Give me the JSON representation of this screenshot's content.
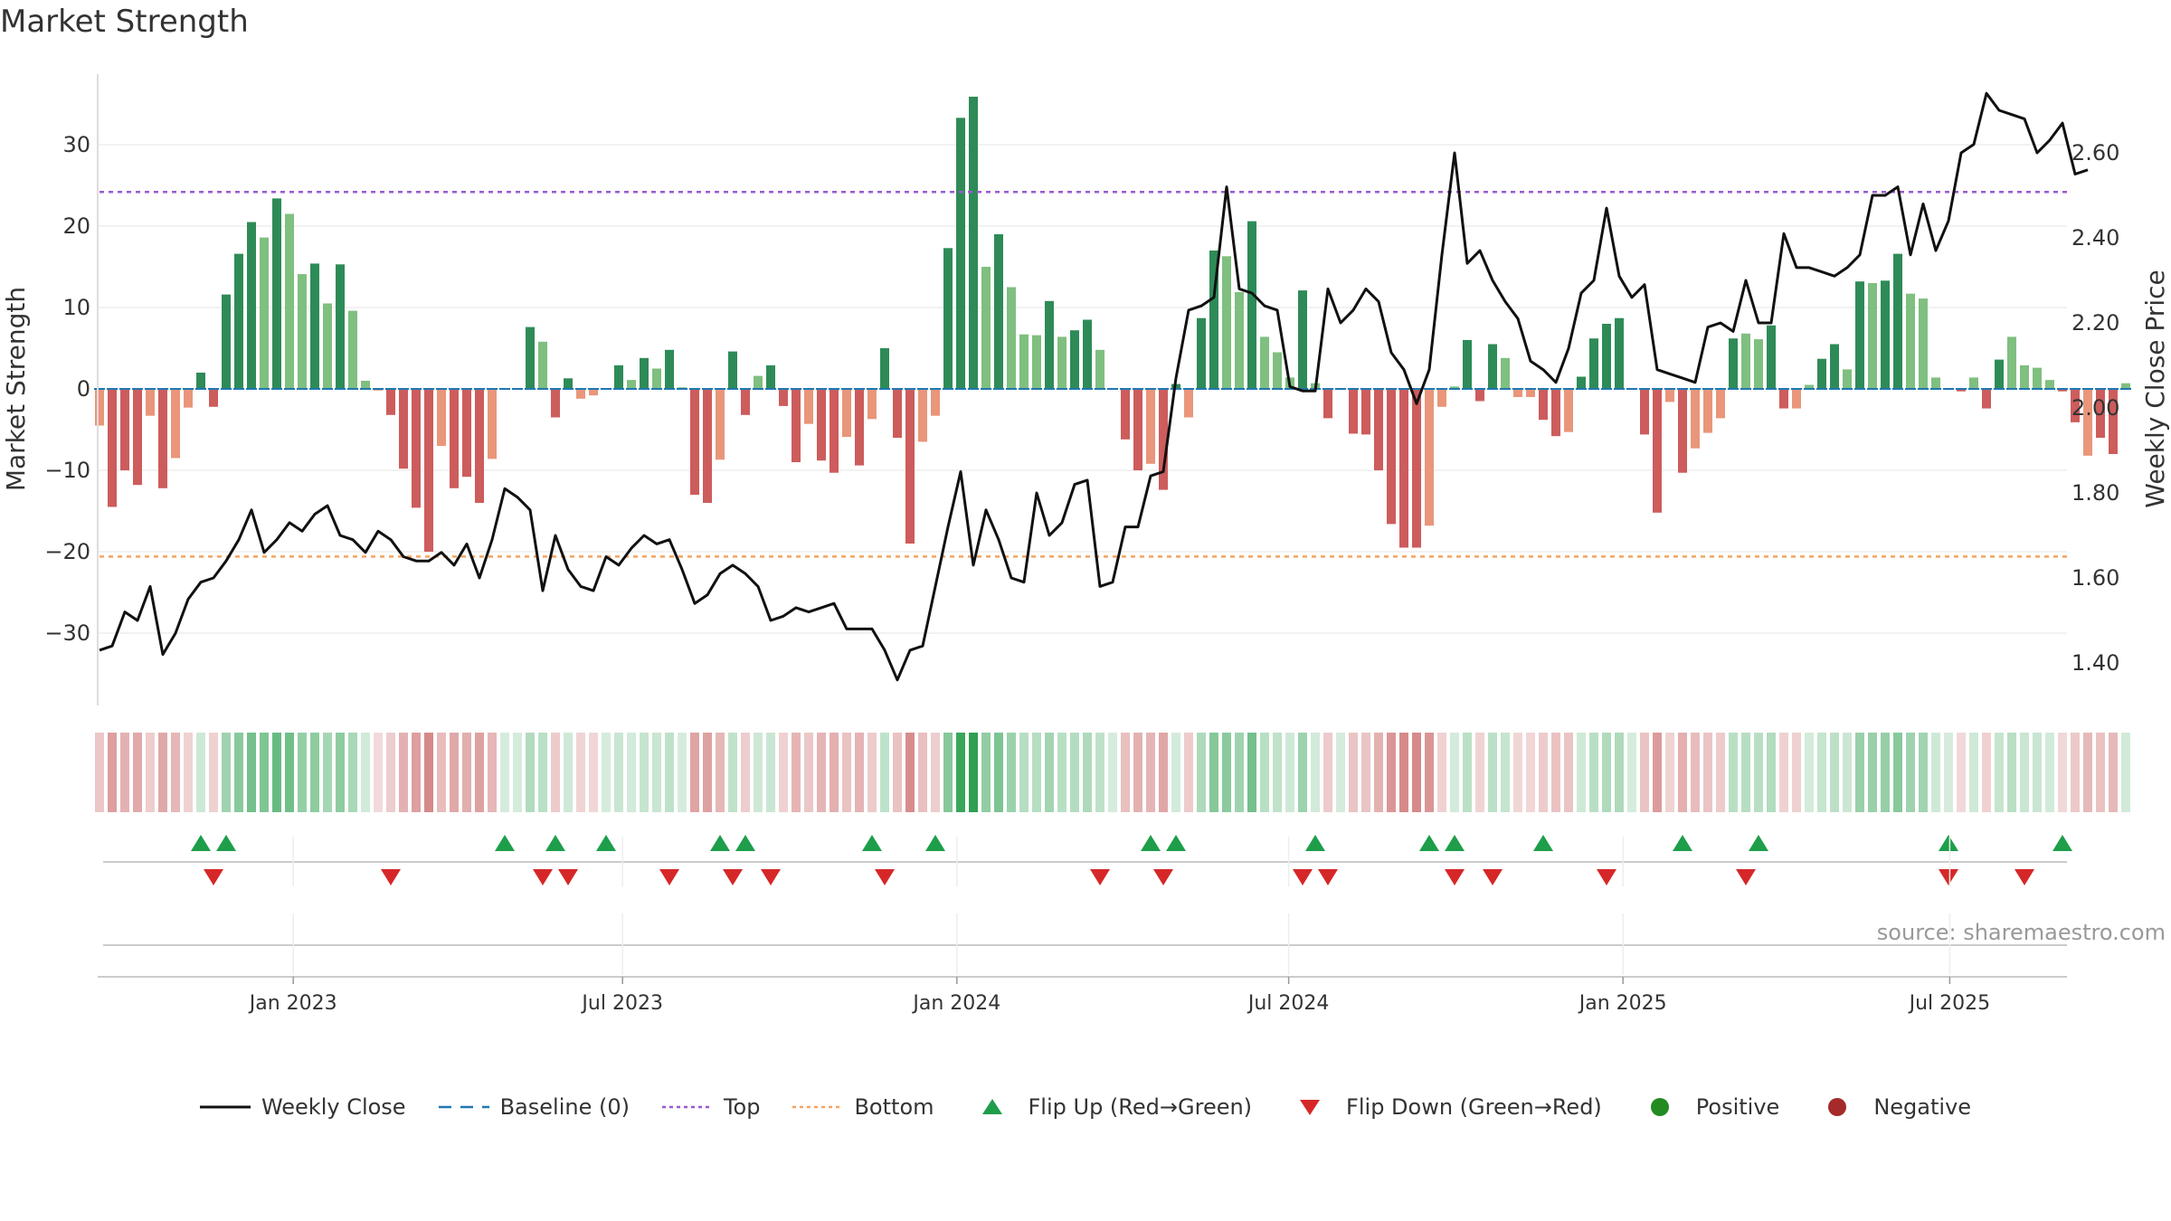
{
  "title": "Market Strength",
  "source": "source: sharemaestro.com",
  "colors": {
    "strong_green": "#2e8b57",
    "light_green": "#7fbf7f",
    "strong_red": "#cd5c5c",
    "light_red": "#e9967a",
    "top_line": "#9b59d0",
    "bottom_line": "#f4a460",
    "baseline": "#1f77b4",
    "close_line": "#111111",
    "flip_up": "#1e9e4a",
    "flip_down": "#d62728",
    "positive": "#228b22",
    "negative": "#a52a2a"
  },
  "legend": [
    {
      "label": "Weekly Close",
      "type": "line"
    },
    {
      "label": "Baseline (0)",
      "type": "dash"
    },
    {
      "label": "Top",
      "type": "dot-purple"
    },
    {
      "label": "Bottom",
      "type": "dot-orange"
    },
    {
      "label": "Flip Up (Red→Green)",
      "type": "tri-up"
    },
    {
      "label": "Flip Down (Green→Red)",
      "type": "tri-down"
    },
    {
      "label": "Positive",
      "type": "circle-green"
    },
    {
      "label": "Negative",
      "type": "circle-red"
    }
  ],
  "chart_data": {
    "type": "bar",
    "ylabel": "Market Strength",
    "y2label": "Weekly Close Price",
    "ylim": [
      -38,
      39
    ],
    "y2lim": [
      1.34,
      2.93
    ],
    "yticks": [
      30,
      20,
      10,
      0,
      -10,
      -20,
      -30
    ],
    "yticklabels": [
      "30",
      "20",
      "10",
      "0",
      "−10",
      "−20",
      "−30"
    ],
    "y2ticks": [
      2.6,
      2.4,
      2.2,
      2.0,
      1.8,
      1.6,
      1.4
    ],
    "y2ticklabels": [
      "2.60",
      "2.40",
      "2.20",
      "2.00",
      "1.80",
      "1.60",
      "1.40"
    ],
    "top_level": 24.2,
    "bottom_level": -20.6,
    "x_start": "2022-10-21",
    "x_ticks": [
      "Jan 2023",
      "Jul 2023",
      "Jan 2024",
      "Jul 2024",
      "Jan 2025",
      "Jul 2025"
    ],
    "x_tick_weeks": [
      15.3,
      41.3,
      67.7,
      93.9,
      120.3,
      146.1
    ],
    "strength": [
      -4.5,
      -14.5,
      -10,
      -11.8,
      -3.3,
      -12.2,
      -8.5,
      -2.3,
      2,
      -2.2,
      11.6,
      16.6,
      20.5,
      18.6,
      23.4,
      21.5,
      14.1,
      15.4,
      10.5,
      15.3,
      9.6,
      1,
      -0.2,
      -3.2,
      -9.8,
      -14.6,
      -20,
      -7,
      -12.2,
      -10.8,
      -14,
      -8.6,
      0,
      0,
      7.6,
      5.8,
      -3.5,
      1.3,
      -1.2,
      -0.8,
      0.1,
      2.9,
      1.1,
      3.8,
      2.5,
      4.8,
      0.2,
      -13,
      -14,
      -8.7,
      4.6,
      -3.2,
      1.6,
      2.9,
      -2.1,
      -9,
      -4.3,
      -8.8,
      -10.3,
      -5.9,
      -9.4,
      -3.7,
      5,
      -6,
      -19,
      -6.5,
      -3.3,
      17.3,
      33.3,
      35.9,
      15,
      19,
      12.5,
      6.7,
      6.6,
      10.8,
      6.4,
      7.2,
      8.5,
      4.8,
      0,
      -6.2,
      -10,
      -9.2,
      -12.4,
      0.6,
      -3.5,
      8.7,
      17,
      16.3,
      11.9,
      20.6,
      6.4,
      4.5,
      1.4,
      12.1,
      0.7,
      -3.6,
      0,
      -5.5,
      -5.6,
      -10,
      -16.6,
      -19.5,
      -19.5,
      -16.8,
      -2.2,
      0.3,
      6,
      -1.5,
      5.5,
      3.8,
      -1,
      -1,
      -3.8,
      -5.8,
      -5.3,
      1.5,
      6.2,
      8,
      8.7,
      0.1,
      -5.6,
      -15.2,
      -1.6,
      -10.3,
      -7.3,
      -5.4,
      -3.6,
      6.2,
      6.8,
      6.1,
      7.8,
      -2.4,
      -2.4,
      0.5,
      3.7,
      5.5,
      2.4,
      13.2,
      13,
      13.3,
      16.6,
      11.7,
      11.1,
      1.4,
      0,
      -0.3,
      1.4,
      -2.4,
      3.6,
      6.4,
      2.9,
      2.6,
      1.1,
      -0.3,
      -4.1,
      -8.2,
      -6,
      -8,
      0.7
    ],
    "strong": [
      false,
      true,
      true,
      true,
      false,
      true,
      false,
      false,
      true,
      true,
      true,
      true,
      true,
      false,
      true,
      false,
      false,
      true,
      false,
      true,
      false,
      false,
      false,
      true,
      true,
      true,
      true,
      false,
      true,
      true,
      true,
      false,
      false,
      false,
      true,
      false,
      true,
      true,
      false,
      false,
      false,
      true,
      false,
      true,
      false,
      true,
      false,
      true,
      true,
      false,
      true,
      true,
      false,
      true,
      true,
      true,
      false,
      true,
      true,
      false,
      true,
      false,
      true,
      true,
      true,
      false,
      false,
      true,
      true,
      true,
      false,
      true,
      false,
      false,
      false,
      true,
      false,
      true,
      true,
      false,
      false,
      true,
      true,
      false,
      true,
      true,
      false,
      true,
      true,
      false,
      false,
      true,
      false,
      false,
      false,
      true,
      false,
      true,
      false,
      true,
      true,
      true,
      true,
      true,
      true,
      false,
      false,
      false,
      true,
      true,
      true,
      false,
      false,
      false,
      true,
      true,
      false,
      true,
      true,
      true,
      true,
      false,
      true,
      true,
      false,
      true,
      false,
      false,
      false,
      true,
      false,
      false,
      true,
      true,
      false,
      false,
      true,
      true,
      false,
      true,
      false,
      true,
      true,
      false,
      false,
      false,
      false,
      true,
      false,
      true,
      true,
      false,
      false,
      false,
      false,
      true,
      true,
      false,
      true,
      true
    ],
    "weekly_close": [
      1.43,
      1.44,
      1.52,
      1.5,
      1.58,
      1.42,
      1.47,
      1.55,
      1.59,
      1.6,
      1.64,
      1.69,
      1.76,
      1.66,
      1.69,
      1.73,
      1.71,
      1.75,
      1.77,
      1.7,
      1.69,
      1.66,
      1.71,
      1.69,
      1.65,
      1.64,
      1.64,
      1.66,
      1.63,
      1.68,
      1.6,
      1.69,
      1.81,
      1.79,
      1.76,
      1.57,
      1.7,
      1.62,
      1.58,
      1.57,
      1.65,
      1.63,
      1.67,
      1.7,
      1.68,
      1.69,
      1.62,
      1.54,
      1.56,
      1.61,
      1.63,
      1.61,
      1.58,
      1.5,
      1.51,
      1.53,
      1.52,
      1.53,
      1.54,
      1.48,
      1.48,
      1.48,
      1.43,
      1.36,
      1.43,
      1.44,
      1.58,
      1.72,
      1.85,
      1.63,
      1.76,
      1.69,
      1.6,
      1.59,
      1.8,
      1.7,
      1.73,
      1.82,
      1.83,
      1.58,
      1.59,
      1.72,
      1.72,
      1.84,
      1.85,
      2.07,
      2.23,
      2.24,
      2.26,
      2.52,
      2.28,
      2.27,
      2.24,
      2.23,
      2.05,
      2.04,
      2.04,
      2.28,
      2.2,
      2.23,
      2.28,
      2.25,
      2.13,
      2.09,
      2.01,
      2.09,
      2.36,
      2.6,
      2.34,
      2.37,
      2.3,
      2.25,
      2.21,
      2.11,
      2.09,
      2.06,
      2.14,
      2.27,
      2.3,
      2.47,
      2.31,
      2.26,
      2.29,
      2.09,
      2.08,
      2.07,
      2.06,
      2.19,
      2.2,
      2.18,
      2.3,
      2.2,
      2.2,
      2.41,
      2.33,
      2.33,
      2.32,
      2.31,
      2.33,
      2.36,
      2.5,
      2.5,
      2.52,
      2.36,
      2.48,
      2.37,
      2.44,
      2.6,
      2.62,
      2.74,
      2.7,
      2.69,
      2.68,
      2.6,
      2.63,
      2.67,
      2.55,
      2.56
    ],
    "flip_up_weeks": [
      8,
      10,
      32,
      36,
      40,
      49,
      51,
      61,
      66,
      83,
      85,
      96,
      105,
      107,
      114,
      125,
      131,
      146,
      155
    ],
    "flip_down_weeks": [
      9,
      23,
      35,
      37,
      45,
      50,
      53,
      62,
      79,
      84,
      95,
      97,
      107,
      110,
      119,
      130,
      146,
      152
    ]
  }
}
